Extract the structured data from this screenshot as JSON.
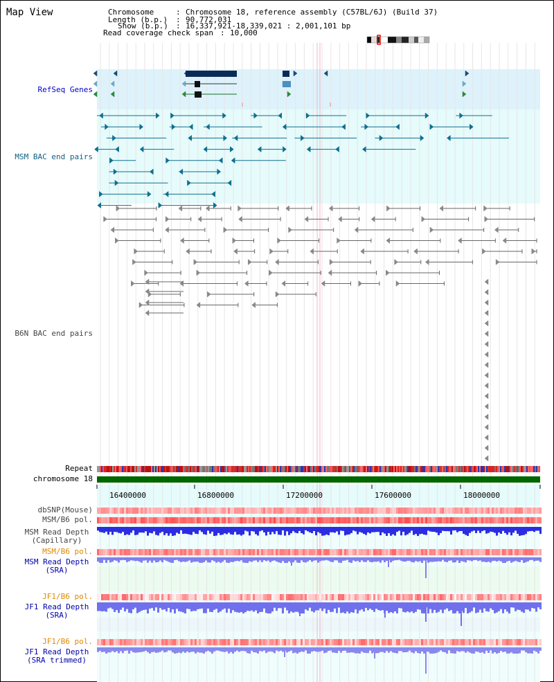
{
  "header": {
    "title": "Map View",
    "chromosome_key": "Chromosome    ",
    "chromosome_val": "Chromosome 18, reference assembly (C57BL/6J) (Build 37)",
    "length_key": "Length (b.p.)",
    "length_val": "90,772,031",
    "show_key": "Show (b.p.)",
    "show_val": "16,337,921-18,339,021 : 2,001,101 bp",
    "coverage_key": "Read coverage check span",
    "coverage_val": "10,000"
  },
  "tracks": {
    "refseq": "RefSeq Genes",
    "msm_bac": "MSM BAC end pairs",
    "b6n_bac": "B6N BAC end pairs",
    "repeat": "Repeat",
    "chromosome": "chromosome 18",
    "dbsnp": "dbSNP(Mouse)",
    "msm_b6_pol_1": "MSM/B6 pol.",
    "msm_depth_cap_1": "MSM Read Depth",
    "msm_depth_cap_2": "(Capillary)",
    "msm_b6_pol_2": "MSM/B6 pol.",
    "msm_depth_sra_1": "MSM Read Depth",
    "msm_depth_sra_2": "(SRA)",
    "jf1_b6_pol_1": "JF1/B6 pol.",
    "jf1_depth_sra_1": "JF1 Read Depth",
    "jf1_depth_sra_2": "(SRA)",
    "jf1_b6_pol_2": "JF1/B6 pol.",
    "jf1_depth_trim_1": "JF1 Read Depth",
    "jf1_depth_trim_2": "(SRA trimmed)"
  },
  "axis": {
    "ticks": [
      "16400000",
      "16800000",
      "17200000",
      "17600000",
      "18000000"
    ]
  },
  "colors": {
    "refseq_label": "#0000cc",
    "msm_label": "#0e5f7f",
    "b6n_label": "#444444",
    "pol_label": "#e08800",
    "depth_label": "#0000aa",
    "chromosome_bar": "#006600"
  }
}
